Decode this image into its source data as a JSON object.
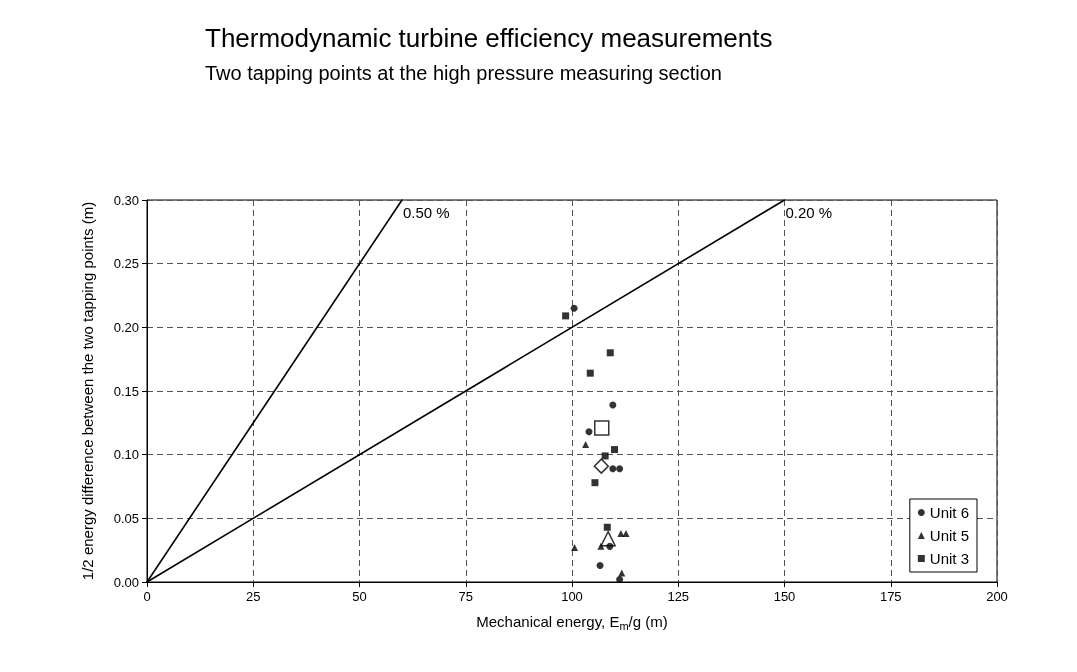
{
  "chart_data": {
    "type": "scatter",
    "title": "Thermodynamic turbine efficiency measurements",
    "subtitle": "Two tapping points at the high pressure measuring section",
    "xlabel": "Mechanical energy, E$_{m}$/g (m)",
    "ylabel": "1/2 energy difference between the two tapping points (m)",
    "xlim": [
      0,
      200
    ],
    "xticks": [
      0,
      25,
      50,
      75,
      100,
      125,
      150,
      175,
      200
    ],
    "ylim": [
      0,
      0.3
    ],
    "yticks": [
      {
        "value": 0,
        "label": "0.00"
      },
      {
        "value": 0.05,
        "label": "0.05"
      },
      {
        "value": 0.1,
        "label": "0.10"
      },
      {
        "value": 0.15,
        "label": "0.15"
      },
      {
        "value": 0.2,
        "label": "0.20"
      },
      {
        "value": 0.25,
        "label": "0.25"
      },
      {
        "value": 0.3,
        "label": "0.30"
      }
    ],
    "grid": true,
    "legend": "bottom right",
    "series": [
      {
        "name": "Unit 6",
        "color": "#000000",
        "marker": "circle",
        "x": [
          100.5,
          109.6,
          104,
          109.6,
          111.2,
          108.9,
          106.6,
          111.2
        ],
        "values": [
          0.215,
          0.139,
          0.118,
          0.089,
          0.089,
          0.028,
          0.013,
          0.002
        ]
      },
      {
        "name": "Unit 5",
        "color": "#000000",
        "marker": "triangle",
        "x": [
          103.2,
          111.5,
          112.7,
          106.8,
          100.6,
          111.7
        ],
        "values": [
          0.108,
          0.038,
          0.038,
          0.028,
          0.027,
          0.007
        ]
      },
      {
        "name": "Unit 3",
        "color": "#000000",
        "marker": "square",
        "x": [
          98.5,
          109,
          104.3,
          110,
          107.8,
          105.4,
          108.3
        ],
        "values": [
          0.209,
          0.18,
          0.164,
          0.104,
          0.099,
          0.078,
          0.043
        ]
      },
      {
        "color": "#000000",
        "marker": "square",
        "x": [
          107
        ],
        "values": [
          0.121
        ]
      },
      {
        "color": "#000000",
        "marker": "diamond",
        "x": [
          106.9
        ],
        "values": [
          0.091
        ]
      },
      {
        "color": "#000000",
        "marker": "triangle",
        "x": [
          108.5
        ],
        "values": [
          0.034
        ]
      },
      {
        "type": "line",
        "name": "0.50 %",
        "color": "#000000",
        "marker": "none",
        "x": [
          0,
          60
        ],
        "values": [
          0,
          0.3
        ]
      },
      {
        "type": "line",
        "name": "0.20 %",
        "color": "#000000",
        "marker": "none",
        "x": [
          0,
          150
        ],
        "values": [
          0,
          0.3
        ]
      }
    ]
  }
}
